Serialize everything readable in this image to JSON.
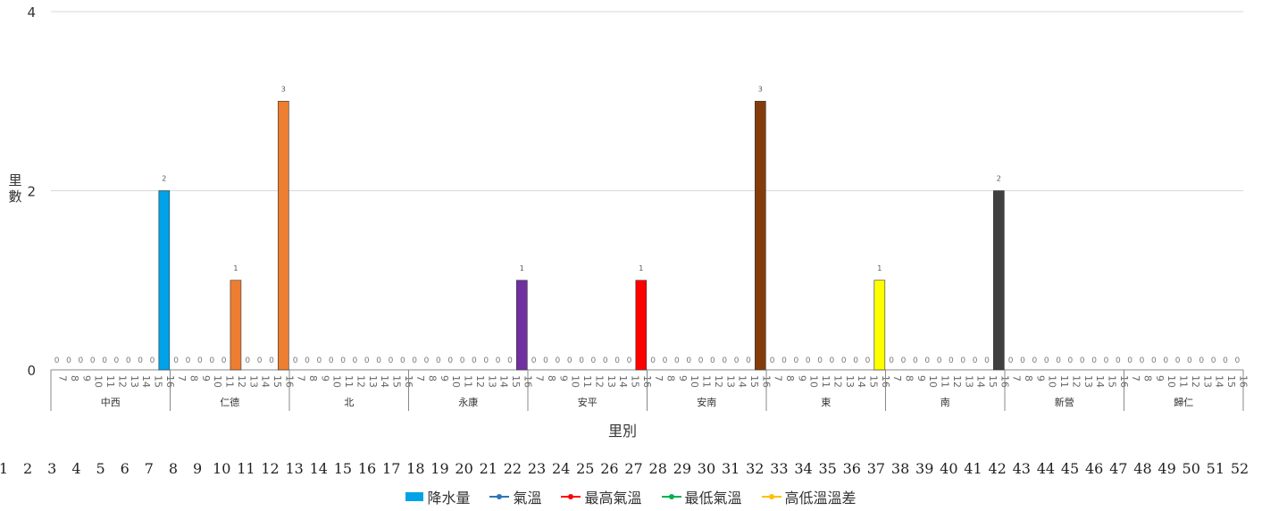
{
  "chart_data": {
    "type": "bar",
    "ylabel": "里數",
    "xlabel": "里別",
    "ylim": [
      0,
      4
    ],
    "yticks": [
      0,
      2,
      4
    ],
    "grid": true,
    "groups": [
      "中西",
      "仁德",
      "北",
      "永康",
      "安平",
      "安南",
      "東",
      "南",
      "新營",
      "歸仁"
    ],
    "hours": [
      "7",
      "8",
      "9",
      "10",
      "11",
      "12",
      "13",
      "14",
      "15",
      "16"
    ],
    "values": [
      [
        0,
        0,
        0,
        0,
        0,
        0,
        0,
        0,
        0,
        2
      ],
      [
        0,
        0,
        0,
        0,
        0,
        1,
        0,
        0,
        0,
        3
      ],
      [
        0,
        0,
        0,
        0,
        0,
        0,
        0,
        0,
        0,
        0
      ],
      [
        0,
        0,
        0,
        0,
        0,
        0,
        0,
        0,
        0,
        1
      ],
      [
        0,
        0,
        0,
        0,
        0,
        0,
        0,
        0,
        0,
        1
      ],
      [
        0,
        0,
        0,
        0,
        0,
        0,
        0,
        0,
        0,
        3
      ],
      [
        0,
        0,
        0,
        0,
        0,
        0,
        0,
        0,
        0,
        1
      ],
      [
        0,
        0,
        0,
        0,
        0,
        0,
        0,
        0,
        0,
        2
      ],
      [
        0,
        0,
        0,
        0,
        0,
        0,
        0,
        0,
        0,
        0
      ],
      [
        0,
        0,
        0,
        0,
        0,
        0,
        0,
        0,
        0,
        0
      ]
    ],
    "group_colors": [
      "#00A2E8",
      "#ED7D31",
      "#ED7D31",
      "#7030A0",
      "#FF0000",
      "#843C0C",
      "#FFFF00",
      "#404040",
      "#00A2E8",
      "#00A2E8"
    ],
    "secondary_x_labels": [
      "1",
      "2",
      "3",
      "4",
      "5",
      "6",
      "7",
      "8",
      "9",
      "10",
      "11",
      "12",
      "13",
      "14",
      "15",
      "16",
      "17",
      "18",
      "19",
      "20",
      "21",
      "22",
      "23",
      "24",
      "25",
      "26",
      "27",
      "28",
      "29",
      "30",
      "31",
      "32",
      "33",
      "34",
      "35",
      "36",
      "37",
      "38",
      "39",
      "40",
      "41",
      "42",
      "43",
      "44",
      "45",
      "46",
      "47",
      "48",
      "49",
      "50",
      "51",
      "52"
    ],
    "legend": [
      {
        "label": "降水量",
        "color": "#00A2E8",
        "kind": "bar"
      },
      {
        "label": "氣溫",
        "color": "#2E75B6",
        "kind": "line"
      },
      {
        "label": "最高氣溫",
        "color": "#FF0000",
        "kind": "line"
      },
      {
        "label": "最低氣溫",
        "color": "#00B050",
        "kind": "line"
      },
      {
        "label": "高低溫溫差",
        "color": "#FFC000",
        "kind": "line"
      }
    ],
    "legend_position": "bottom"
  }
}
